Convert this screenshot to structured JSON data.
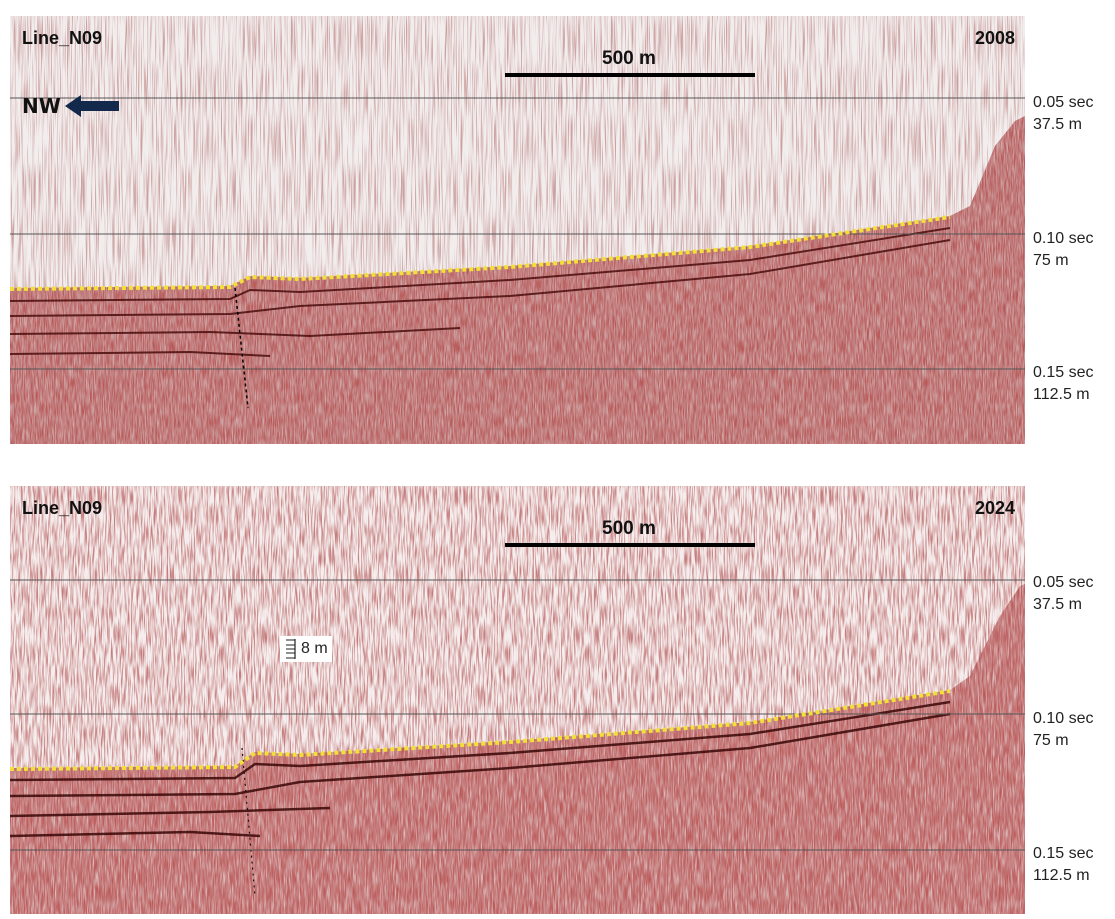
{
  "panels": [
    {
      "title": "Line_N09",
      "year": "2008",
      "scale_label": "500 m",
      "direction_label": "NW"
    },
    {
      "title": "Line_N09",
      "year": "2024",
      "scale_label": "500 m",
      "inset_scale_label": "8 m"
    }
  ],
  "axis_labels": [
    {
      "time": "0.05 sec",
      "depth": "37.5 m"
    },
    {
      "time": "0.10 sec",
      "depth": "75 m"
    },
    {
      "time": "0.15 sec",
      "depth": "112.5 m"
    }
  ],
  "colors": {
    "seismic_trace": "#7a1a1a",
    "seafloor_marker": "#f2e03a",
    "gridline": "#555555"
  },
  "icons": {
    "direction": "left-arrow-icon",
    "vertical_scale": "vertical-scale-icon"
  }
}
